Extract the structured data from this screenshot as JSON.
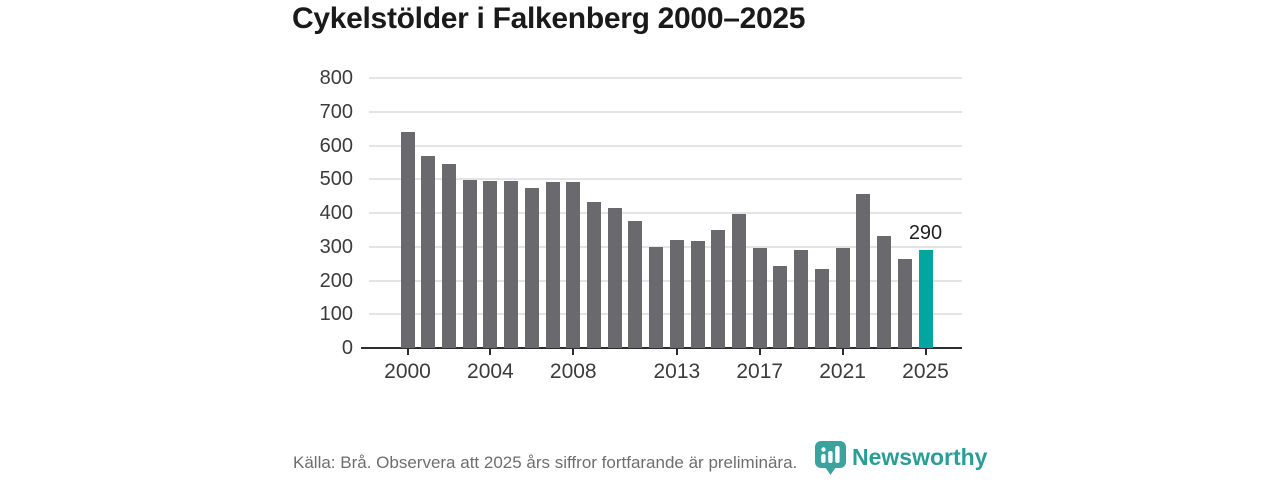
{
  "chart": {
    "title": "Cykelstölder i Falkenberg 2000–2025"
  },
  "chart_data": {
    "type": "bar",
    "title": "Cykelstölder i Falkenberg 2000–2025",
    "x": [
      2000,
      2001,
      2002,
      2003,
      2004,
      2005,
      2006,
      2007,
      2008,
      2009,
      2010,
      2011,
      2012,
      2013,
      2014,
      2015,
      2016,
      2017,
      2018,
      2019,
      2020,
      2021,
      2022,
      2023,
      2024,
      2025
    ],
    "values": [
      640,
      570,
      546,
      498,
      496,
      496,
      473,
      493,
      491,
      432,
      414,
      375,
      299,
      320,
      317,
      349,
      398,
      297,
      244,
      289,
      234,
      295,
      456,
      333,
      265,
      290
    ],
    "highlight_year": 2025,
    "highlight_label": "290",
    "ylim": [
      0,
      800
    ],
    "yticks": [
      0,
      100,
      200,
      300,
      400,
      500,
      600,
      700,
      800
    ],
    "xtick_years": [
      2000,
      2004,
      2008,
      2013,
      2017,
      2021,
      2025
    ],
    "xtick_labels": [
      "2000",
      "2004",
      "2008",
      "2013",
      "2017",
      "2021",
      "2025"
    ],
    "grid": true,
    "legend": "none",
    "bar_color": "#6a696e",
    "highlight_color": "#00a69f",
    "gridline_color": "#e4e4e4",
    "axis_color": "#2e2e2e"
  },
  "footer": {
    "source_note": "Källa: Brå. Observera att 2025 års siffror fortfarande är preliminära.",
    "brand": "Newsworthy",
    "brand_color": "#2a9d97",
    "logo_color": "#3aa39d"
  },
  "icons": {
    "brand_logo": "bar-chart-pin-icon"
  }
}
